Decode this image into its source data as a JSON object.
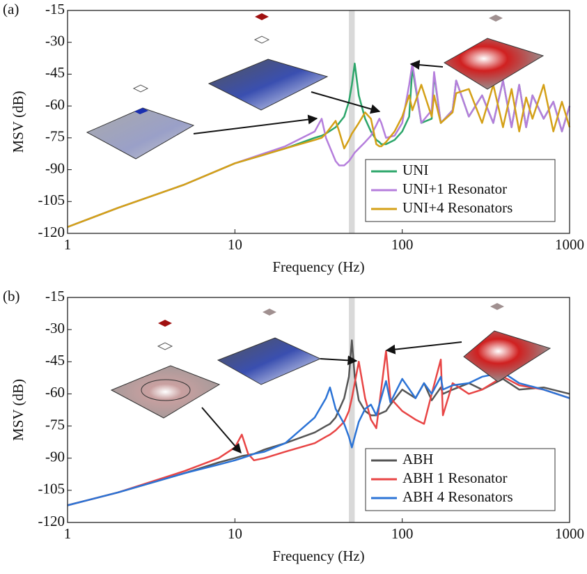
{
  "chart_data": [
    {
      "type": "line",
      "panel_label": "(a)",
      "xlabel": "Frequency (Hz)",
      "ylabel": "MSV (dB)",
      "xscale": "log",
      "xlim": [
        1,
        1000
      ],
      "xticks": [
        1,
        10,
        100,
        1000
      ],
      "ylim": [
        -120,
        -15
      ],
      "yticks": [
        -15,
        -30,
        -45,
        -60,
        -75,
        -90,
        -105,
        -120
      ],
      "highlight_band": [
        48,
        52
      ],
      "legend": "lower right",
      "x": [
        1,
        2,
        5,
        10,
        20,
        30,
        33,
        35,
        40,
        42,
        45,
        48,
        50,
        52,
        55,
        60,
        65,
        70,
        73,
        75,
        80,
        90,
        100,
        110,
        115,
        130,
        150,
        155,
        170,
        200,
        210,
        250,
        300,
        350,
        400,
        450,
        500,
        550,
        600,
        700,
        800,
        900,
        1000
      ],
      "series": [
        {
          "name": "UNI",
          "color": "#2ca66a",
          "values": [
            -117,
            -108,
            -97,
            -87,
            -80,
            -75,
            -74,
            -73,
            -70,
            -68,
            -65,
            -58,
            -50,
            -40,
            -55,
            -66,
            -72,
            -76,
            -77,
            -78,
            -78,
            -76,
            -72,
            -65,
            -42,
            -68,
            -66,
            -45,
            -68,
            -62,
            -48,
            -65,
            -55,
            -68,
            -48,
            -70,
            -50,
            -70,
            -55,
            -66,
            -58,
            -72,
            -60
          ]
        },
        {
          "name": "UNI+1 Resonator",
          "color": "#b57edc",
          "values": [
            -117,
            -108,
            -97,
            -87,
            -79,
            -72,
            -66,
            -75,
            -86,
            -88,
            -88,
            -86,
            -84,
            -82,
            -80,
            -77,
            -74,
            -69,
            -66,
            -68,
            -75,
            -74,
            -68,
            -50,
            -40,
            -68,
            -62,
            -44,
            -68,
            -62,
            -48,
            -65,
            -55,
            -68,
            -48,
            -70,
            -50,
            -70,
            -55,
            -66,
            -58,
            -72,
            -60
          ]
        },
        {
          "name": "UNI+4 Resonators",
          "color": "#d4a017",
          "values": [
            -117,
            -108,
            -97,
            -87,
            -80,
            -76,
            -75,
            -73,
            -67,
            -72,
            -80,
            -76,
            -73,
            -71,
            -68,
            -63,
            -66,
            -78,
            -79,
            -79,
            -77,
            -72,
            -65,
            -55,
            -62,
            -50,
            -65,
            -55,
            -68,
            -63,
            -54,
            -52,
            -68,
            -50,
            -70,
            -52,
            -72,
            -56,
            -66,
            -50,
            -72,
            -58,
            -70
          ]
        }
      ]
    },
    {
      "type": "line",
      "panel_label": "(b)",
      "xlabel": "Frequency (Hz)",
      "ylabel": "MSV (dB)",
      "xscale": "log",
      "xlim": [
        1,
        1000
      ],
      "xticks": [
        1,
        10,
        100,
        1000
      ],
      "ylim": [
        -120,
        -15
      ],
      "yticks": [
        -15,
        -30,
        -45,
        -60,
        -75,
        -90,
        -105,
        -120
      ],
      "highlight_band": [
        48,
        52
      ],
      "legend": "lower right",
      "x": [
        1,
        2,
        5,
        8,
        10,
        11,
        12,
        13,
        15,
        20,
        30,
        35,
        37,
        40,
        45,
        48,
        50,
        52,
        55,
        60,
        65,
        70,
        80,
        85,
        100,
        120,
        135,
        150,
        170,
        175,
        200,
        250,
        300,
        400,
        500,
        700,
        1000
      ],
      "series": [
        {
          "name": "ABH",
          "color": "#555555",
          "values": [
            -112,
            -106,
            -97,
            -92,
            -90,
            -89,
            -88.5,
            -88,
            -86,
            -83,
            -78,
            -75,
            -74,
            -71,
            -62,
            -52,
            -35,
            -52,
            -63,
            -68,
            -70,
            -70,
            -68,
            -65,
            -58,
            -62,
            -55,
            -63,
            -57,
            -60,
            -58,
            -55,
            -58,
            -53,
            -58,
            -57,
            -60
          ]
        },
        {
          "name": "ABH 1 Resonator",
          "color": "#e84545",
          "values": [
            -112,
            -106,
            -96,
            -90,
            -85,
            -79,
            -88,
            -91,
            -90,
            -87,
            -83,
            -80,
            -79,
            -77,
            -73,
            -68,
            -62,
            -55,
            -45,
            -62,
            -72,
            -76,
            -40,
            -62,
            -68,
            -72,
            -74,
            -60,
            -44,
            -70,
            -55,
            -60,
            -58,
            -52,
            -56,
            -58,
            -62
          ]
        },
        {
          "name": "ABH 4 Resonators",
          "color": "#2b73d6",
          "values": [
            -112,
            -106,
            -97,
            -93,
            -91,
            -90,
            -89,
            -88,
            -87,
            -83,
            -71,
            -62,
            -57,
            -67,
            -74,
            -80,
            -85,
            -80,
            -73,
            -67,
            -65,
            -70,
            -54,
            -64,
            -53,
            -62,
            -55,
            -60,
            -52,
            -58,
            -56,
            -55,
            -52,
            -50,
            -55,
            -58,
            -62
          ]
        }
      ]
    }
  ]
}
